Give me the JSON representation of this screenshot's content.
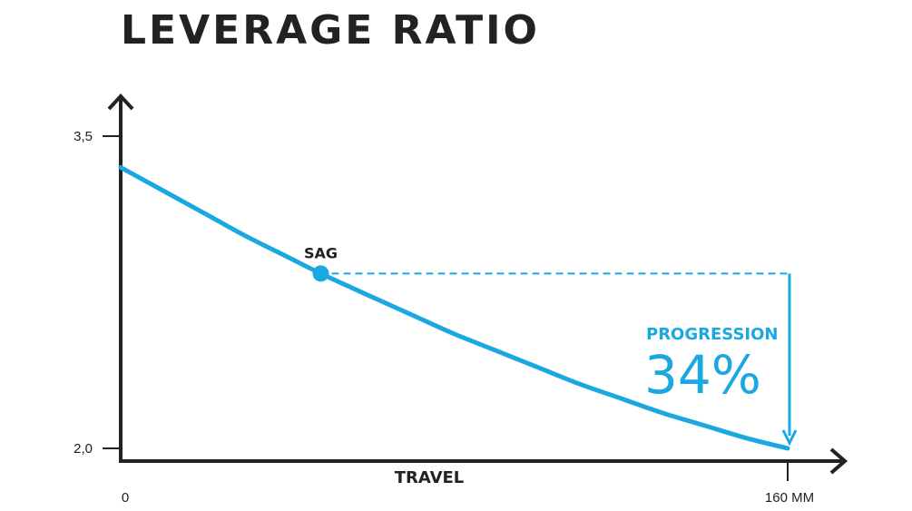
{
  "chart_data": {
    "type": "line",
    "title": "LEVERAGE RATIO",
    "xlabel": "TRAVEL",
    "ylabel": "",
    "x_ticks": [
      {
        "value": 0,
        "label": "0"
      },
      {
        "value": 160,
        "label": "160 MM"
      }
    ],
    "y_ticks": [
      {
        "value": 2.0,
        "label": "2,0"
      },
      {
        "value": 3.5,
        "label": "3,5"
      }
    ],
    "xlim": [
      0,
      160
    ],
    "ylim": [
      2.0,
      3.5
    ],
    "grid": false,
    "series": [
      {
        "x": [
          0,
          10,
          20,
          30,
          40,
          48,
          60,
          70,
          80,
          90,
          100,
          110,
          120,
          130,
          140,
          150,
          160
        ],
        "values": [
          3.35,
          3.24,
          3.13,
          3.02,
          2.92,
          2.84,
          2.73,
          2.64,
          2.55,
          2.47,
          2.39,
          2.31,
          2.24,
          2.17,
          2.11,
          2.05,
          2.0
        ]
      }
    ],
    "annotations": {
      "sag": {
        "label": "SAG",
        "x": 48,
        "y": 2.84
      },
      "progression": {
        "label": "PROGRESSION",
        "value": "34%"
      }
    },
    "colors": {
      "series": "#1ba8e0",
      "axes": "#222222",
      "text": "#222222"
    }
  }
}
